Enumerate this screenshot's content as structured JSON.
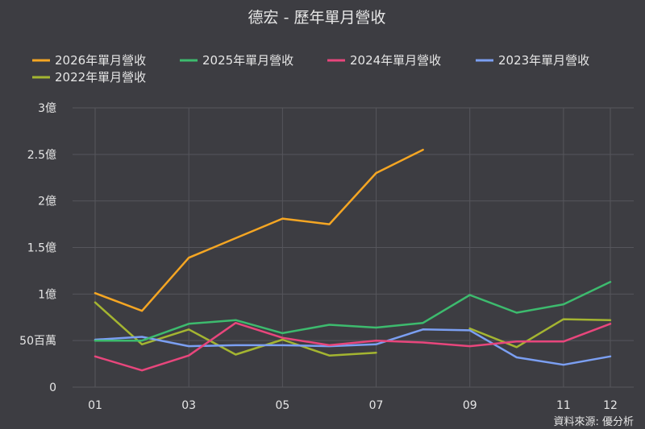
{
  "chart_data": {
    "type": "line",
    "title": "德宏 - 歷年單月營收",
    "source": "資料來源: 優分析",
    "xlabel": "",
    "ylabel": "",
    "categories": [
      "01",
      "02",
      "03",
      "04",
      "05",
      "06",
      "07",
      "08",
      "09",
      "10",
      "11",
      "12"
    ],
    "x_tick_labels": [
      "01",
      "",
      "03",
      "",
      "05",
      "",
      "07",
      "",
      "09",
      "",
      "11",
      "12"
    ],
    "y_ticks": [
      {
        "value": 0,
        "label": "0"
      },
      {
        "value": 50,
        "label": "50百萬"
      },
      {
        "value": 100,
        "label": "1億"
      },
      {
        "value": 150,
        "label": "1.5億"
      },
      {
        "value": 200,
        "label": "2億"
      },
      {
        "value": 250,
        "label": "2.5億"
      },
      {
        "value": 300,
        "label": "3億"
      }
    ],
    "ylim": [
      0,
      300
    ],
    "grid": true,
    "legend_position": "top",
    "series": [
      {
        "name": "2026年單月營收",
        "color": "#f5a623",
        "values": [
          101,
          82,
          139,
          160,
          181,
          175,
          230,
          255,
          null,
          null,
          null,
          null
        ]
      },
      {
        "name": "2025年單月營收",
        "color": "#3dbb6e",
        "values": [
          50,
          50,
          68,
          72,
          58,
          67,
          64,
          69,
          99,
          80,
          89,
          113
        ]
      },
      {
        "name": "2024年單月營收",
        "color": "#e8467c",
        "values": [
          33,
          18,
          34,
          69,
          53,
          45,
          50,
          48,
          44,
          49,
          49,
          68
        ]
      },
      {
        "name": "2023年單月營收",
        "color": "#7b9ff2",
        "values": [
          51,
          54,
          44,
          45,
          45,
          44,
          46,
          62,
          61,
          32,
          24,
          33
        ]
      },
      {
        "name": "2022年單月營收",
        "color": "#a4b531",
        "values": [
          91,
          46,
          62,
          35,
          51,
          34,
          37,
          null,
          63,
          43,
          73,
          72
        ]
      }
    ]
  }
}
